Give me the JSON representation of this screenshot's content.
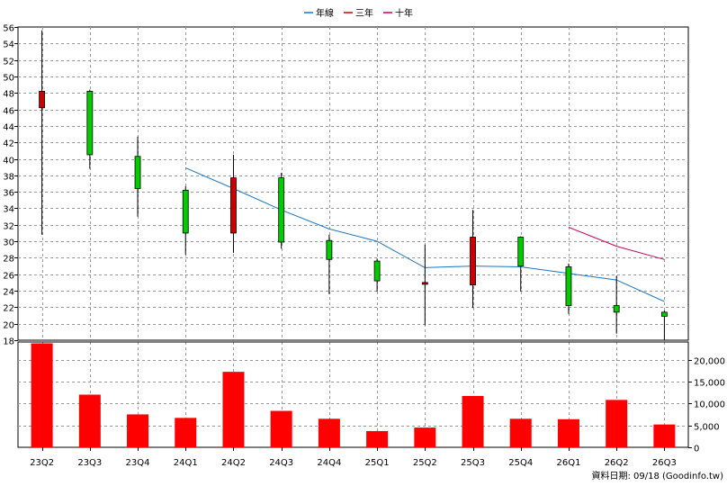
{
  "legend": {
    "items": [
      {
        "label": "年線",
        "color": "#1a75c2"
      },
      {
        "label": "三年",
        "color": "#cc0000"
      },
      {
        "label": "十年",
        "color": "#cc0066"
      }
    ]
  },
  "source_note": "資料日期: 09/18 (Goodinfo.tw)",
  "chart_data": [
    {
      "type": "candlestick",
      "categories": [
        "23Q2",
        "23Q3",
        "23Q4",
        "24Q1",
        "24Q2",
        "24Q3",
        "24Q4",
        "25Q1",
        "25Q2",
        "25Q3",
        "25Q4",
        "26Q1",
        "26Q2",
        "26Q3"
      ],
      "ylim": [
        18,
        56
      ],
      "yticks": [
        18,
        20,
        22,
        24,
        26,
        28,
        30,
        32,
        34,
        36,
        38,
        40,
        42,
        44,
        46,
        48,
        50,
        52,
        54,
        56
      ],
      "grid": true,
      "legend_position": "top-center",
      "candles": [
        {
          "open": 46.2,
          "close": 48.2,
          "high": 55.6,
          "low": 30.8
        },
        {
          "open": 48.2,
          "close": 40.5,
          "high": 48.4,
          "low": 38.8
        },
        {
          "open": 40.3,
          "close": 36.4,
          "high": 42.7,
          "low": 33.0
        },
        {
          "open": 36.2,
          "close": 31.0,
          "high": 36.7,
          "low": 28.4
        },
        {
          "open": 31.0,
          "close": 37.7,
          "high": 40.5,
          "low": 28.6
        },
        {
          "open": 37.7,
          "close": 29.9,
          "high": 38.3,
          "low": 29.1
        },
        {
          "open": 30.1,
          "close": 27.8,
          "high": 30.8,
          "low": 23.6
        },
        {
          "open": 27.6,
          "close": 25.2,
          "high": 27.9,
          "low": 23.9
        },
        {
          "open": 24.8,
          "close": 25.0,
          "high": 29.6,
          "low": 19.8
        },
        {
          "open": 24.7,
          "close": 30.5,
          "high": 33.8,
          "low": 21.9
        },
        {
          "open": 30.5,
          "close": 27.0,
          "high": 30.6,
          "low": 23.9
        },
        {
          "open": 26.9,
          "close": 22.2,
          "high": 27.3,
          "low": 21.2
        },
        {
          "open": 22.2,
          "close": 21.4,
          "high": 25.8,
          "low": 18.8
        },
        {
          "open": 21.4,
          "close": 20.9,
          "high": 21.6,
          "low": 18.0
        }
      ],
      "rise_color": "#cc0000",
      "fall_color": "#00cc00",
      "series": [
        {
          "name": "年線",
          "color": "#1a75c2",
          "values": [
            null,
            null,
            null,
            38.9,
            36.4,
            33.8,
            31.5,
            30.0,
            26.8,
            27.0,
            26.9,
            26.1,
            25.3,
            22.7
          ]
        },
        {
          "name": "三年",
          "color": "#cc0000",
          "values": [
            null,
            null,
            null,
            null,
            null,
            null,
            null,
            null,
            null,
            null,
            null,
            null,
            null,
            null
          ]
        },
        {
          "name": "十年",
          "color": "#cc0066",
          "values": [
            null,
            null,
            null,
            null,
            null,
            null,
            null,
            null,
            null,
            null,
            null,
            31.7,
            29.4,
            27.8
          ]
        }
      ]
    },
    {
      "type": "bar",
      "categories": [
        "23Q2",
        "23Q3",
        "23Q4",
        "24Q1",
        "24Q2",
        "24Q3",
        "24Q4",
        "25Q1",
        "25Q2",
        "25Q3",
        "25Q4",
        "26Q1",
        "26Q2",
        "26Q3"
      ],
      "values": [
        23700,
        12000,
        7500,
        6700,
        17200,
        8300,
        6500,
        3700,
        4500,
        11700,
        6500,
        6400,
        10800,
        5200
      ],
      "ylim": [
        0,
        24000
      ],
      "yticks": [
        0,
        5000,
        10000,
        15000,
        20000
      ],
      "ytick_labels": [
        "0",
        "5,000",
        "10,000",
        "15,000",
        "20,000"
      ],
      "bar_color": "#ff0000"
    }
  ]
}
